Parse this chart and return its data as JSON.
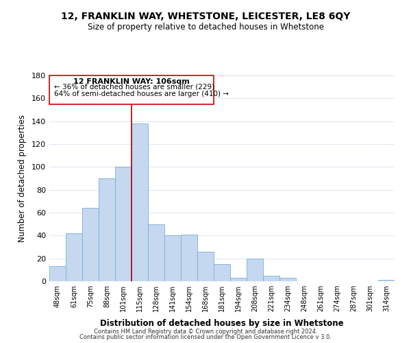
{
  "title": "12, FRANKLIN WAY, WHETSTONE, LEICESTER, LE8 6QY",
  "subtitle": "Size of property relative to detached houses in Whetstone",
  "xlabel": "Distribution of detached houses by size in Whetstone",
  "ylabel": "Number of detached properties",
  "footer1": "Contains HM Land Registry data © Crown copyright and database right 2024.",
  "footer2": "Contains public sector information licensed under the Open Government Licence v 3.0.",
  "bin_labels": [
    "48sqm",
    "61sqm",
    "75sqm",
    "88sqm",
    "101sqm",
    "115sqm",
    "128sqm",
    "141sqm",
    "154sqm",
    "168sqm",
    "181sqm",
    "194sqm",
    "208sqm",
    "221sqm",
    "234sqm",
    "248sqm",
    "261sqm",
    "274sqm",
    "287sqm",
    "301sqm",
    "314sqm"
  ],
  "bar_heights": [
    13,
    42,
    64,
    90,
    100,
    138,
    50,
    40,
    41,
    26,
    15,
    3,
    20,
    5,
    3,
    0,
    0,
    0,
    0,
    0,
    1
  ],
  "bar_color": "#c5d8f0",
  "bar_edge_color": "#7aaed6",
  "vline_x_index": 4.5,
  "vline_color": "#aa0000",
  "annotation_title": "12 FRANKLIN WAY: 106sqm",
  "annotation_line1": "← 36% of detached houses are smaller (229)",
  "annotation_line2": "64% of semi-detached houses are larger (410) →",
  "ylim": [
    0,
    180
  ],
  "yticks": [
    0,
    20,
    40,
    60,
    80,
    100,
    120,
    140,
    160,
    180
  ],
  "background_color": "#ffffff",
  "grid_color": "#dce6f1"
}
